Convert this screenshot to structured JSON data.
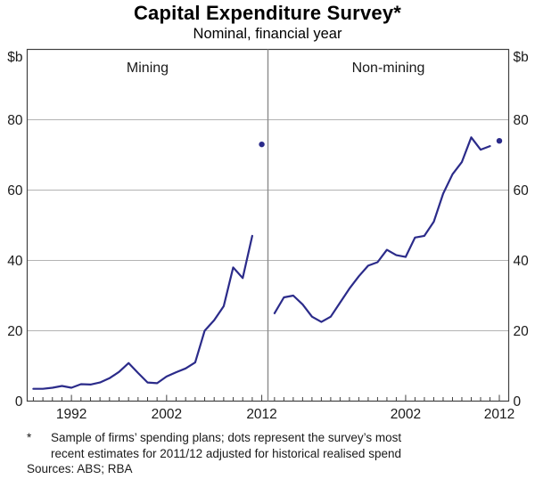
{
  "title": "Capital Expenditure Survey*",
  "subtitle": "Nominal, financial year",
  "footnote": {
    "marker": "*",
    "lines": [
      "Sample of firms’ spending plans; dots represent the survey’s most",
      "recent estimates for 2011/12 adjusted for historical realised spend"
    ],
    "sources": "Sources: ABS; RBA"
  },
  "chart_data": {
    "type": "line",
    "title": "Capital Expenditure Survey*",
    "subtitle": "Nominal, financial year",
    "unit_label": "$b",
    "ylabel": "$b",
    "ylim": [
      0,
      100
    ],
    "yticks": [
      0,
      20,
      40,
      60,
      80
    ],
    "grid": "horizontal-gridlines-at-yticks",
    "legend_position": "none",
    "line_color": "#2b2b8a",
    "frame_color": "#404040",
    "grid_color": "#b3b3b3",
    "divider_color": "#8c8c8c",
    "panels": [
      {
        "label": "Mining",
        "x_domain": [
          1987.35,
          2012.65
        ],
        "xticks_labeled": [
          1992,
          2002,
          2012
        ],
        "xticks_minor_every_year": true,
        "series": {
          "name": "Mining capital expenditure",
          "years": [
            1988,
            1989,
            1990,
            1991,
            1992,
            1993,
            1994,
            1995,
            1996,
            1997,
            1998,
            1999,
            2000,
            2001,
            2002,
            2003,
            2004,
            2005,
            2006,
            2007,
            2008,
            2009,
            2010,
            2011
          ],
          "values": [
            3.5,
            3.5,
            3.8,
            4.3,
            3.8,
            4.8,
            4.7,
            5.3,
            6.5,
            8.3,
            10.8,
            8.0,
            5.3,
            5.1,
            7.0,
            8.2,
            9.3,
            11.0,
            20.0,
            23.0,
            27.0,
            38.0,
            35.0,
            47.0
          ]
        },
        "dot": {
          "year": 2012,
          "value": 73
        }
      },
      {
        "label": "Non-mining",
        "x_domain": [
          1987.3,
          2013.0
        ],
        "xticks_labeled": [
          2002,
          2012
        ],
        "xticks_minor_every_year": true,
        "series": {
          "name": "Non-mining capital expenditure",
          "years": [
            1988,
            1989,
            1990,
            1991,
            1992,
            1993,
            1994,
            1995,
            1996,
            1997,
            1998,
            1999,
            2000,
            2001,
            2002,
            2003,
            2004,
            2005,
            2006,
            2007,
            2008,
            2009,
            2010,
            2011
          ],
          "values": [
            25,
            29.5,
            30,
            27.5,
            24,
            22.5,
            24,
            28,
            32,
            35.5,
            38.5,
            39.5,
            43,
            41.5,
            41,
            46.5,
            47,
            51,
            59,
            64.5,
            68,
            75,
            71.5,
            72.5
          ]
        },
        "dot": {
          "year": 2012,
          "value": 74
        }
      }
    ]
  }
}
